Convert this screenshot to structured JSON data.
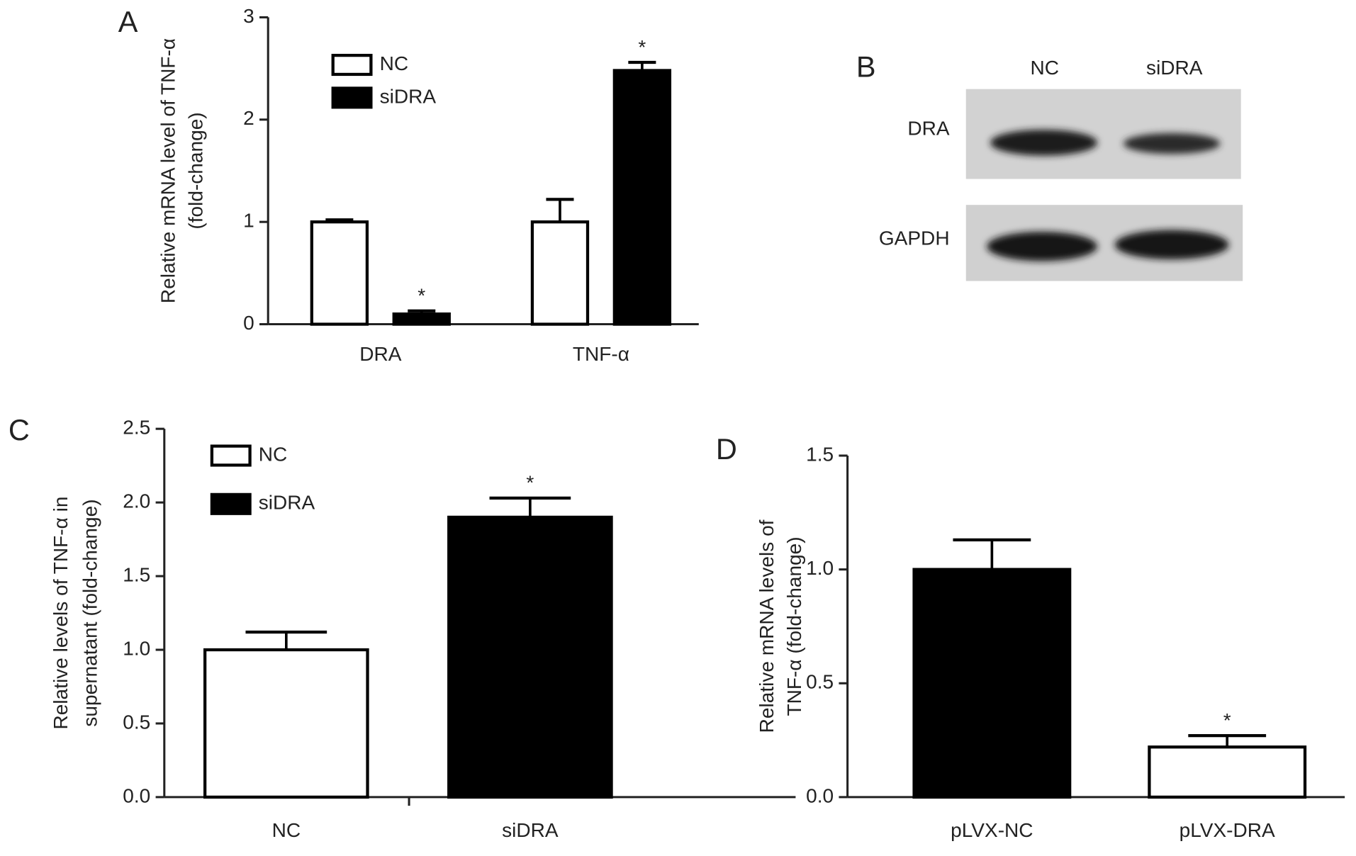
{
  "chart_data": [
    {
      "type": "grouped_bar",
      "panel": "A",
      "ylabel": [
        "Relative mRNA level of TNF-α",
        "(fold-change)"
      ],
      "categories": [
        "DRA",
        "TNF-α"
      ],
      "series": [
        {
          "name": "NC",
          "color": "#ffffff",
          "values": [
            1.0,
            1.0
          ],
          "errors": [
            0.02,
            0.22
          ]
        },
        {
          "name": "siDRA",
          "color": "#000000",
          "values": [
            0.1,
            2.48
          ],
          "errors": [
            0.03,
            0.08
          ],
          "significance": [
            "*",
            "*"
          ]
        }
      ],
      "ylim": [
        0,
        3
      ],
      "yticks": [
        0,
        1,
        2,
        3
      ]
    },
    {
      "type": "bar",
      "panel": "C",
      "ylabel": [
        "Relative levels of TNF-α in",
        "supernatant (fold-change)"
      ],
      "categories": [
        "NC",
        "siDRA"
      ],
      "values": [
        1.0,
        1.9
      ],
      "errors": [
        0.12,
        0.13
      ],
      "colors": [
        "#ffffff",
        "#000000"
      ],
      "significance": [
        null,
        "*"
      ],
      "legend": true,
      "ylim": [
        0,
        2.5
      ],
      "yticks": [
        {
          "value": 0,
          "label": "0.0"
        },
        {
          "value": 0.5,
          "label": "0.5"
        },
        {
          "value": 1,
          "label": "1.0"
        },
        {
          "value": 1.5,
          "label": "1.5"
        },
        {
          "value": 2,
          "label": "2.0"
        },
        {
          "value": 2.5,
          "label": "2.5"
        }
      ]
    },
    {
      "type": "bar",
      "panel": "D",
      "ylabel": [
        "Relative mRNA levels of",
        "TNF-α (fold-change)"
      ],
      "categories": [
        "pLVX-NC",
        "pLVX-DRA"
      ],
      "values": [
        1.0,
        0.22
      ],
      "errors": [
        0.13,
        0.05
      ],
      "colors": [
        "#000000",
        "#ffffff"
      ],
      "significance": [
        null,
        "*"
      ],
      "legend": false,
      "ylim": [
        0,
        1.5
      ],
      "yticks": [
        {
          "value": 0,
          "label": "0.0"
        },
        {
          "value": 0.5,
          "label": "0.5"
        },
        {
          "value": 1,
          "label": "1.0"
        },
        {
          "value": 1.5,
          "label": "1.5"
        }
      ]
    }
  ],
  "blot": {
    "panel": "B",
    "lanes": [
      "NC",
      "siDRA"
    ],
    "rows": [
      "DRA",
      "GAPDH"
    ]
  }
}
